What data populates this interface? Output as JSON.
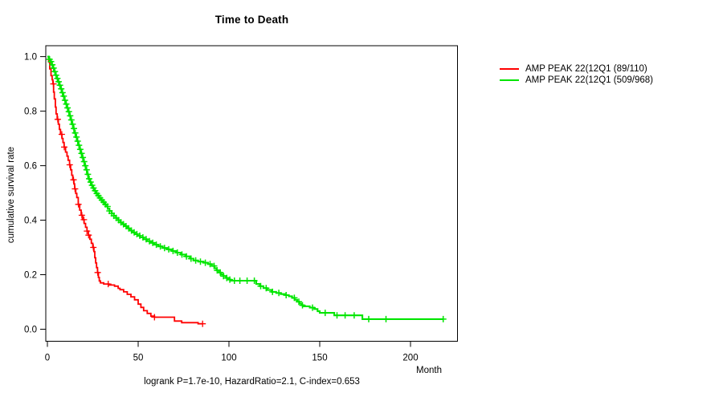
{
  "title": "Time to Death",
  "footnote": "logrank P=1.7e-10, HazardRatio=2.1, C-index=0.653",
  "axes": {
    "xlabel": "Month",
    "ylabel": "cumulative survival rate",
    "x_tick_labels": [
      "0",
      "50",
      "100",
      "150",
      "200"
    ],
    "y_tick_labels": [
      "0.0",
      "0.2",
      "0.4",
      "0.6",
      "0.8",
      "1.0"
    ]
  },
  "legend": [
    {
      "label": "AMP PEAK 22(12Q1 (89/110)",
      "color": "#ff0000"
    },
    {
      "label": "AMP PEAK 22(12Q1 (509/968)",
      "color": "#00e500"
    }
  ],
  "colors": {
    "group1": "#ff0000",
    "group2": "#00e500",
    "axis": "#000000",
    "background": "#ffffff"
  },
  "chart_data": {
    "type": "line",
    "subtype": "kaplan-meier-survival-step",
    "title": "Time to Death",
    "xlabel": "Month",
    "ylabel": "cumulative survival rate",
    "xlim": [
      0,
      225
    ],
    "ylim": [
      0,
      1.0
    ],
    "x_ticks": [
      0,
      50,
      100,
      150,
      200
    ],
    "y_ticks": [
      0,
      0.2,
      0.4,
      0.6,
      0.8,
      1
    ],
    "grid": false,
    "legend_position": "right-outside",
    "annotation": "logrank P=1.7e-10, HazardRatio=2.1, C-index=0.653",
    "series": [
      {
        "name": "AMP PEAK 22(12Q1 (89/110)",
        "events_over_total": "89/110",
        "color": "#ff0000",
        "end_month": 85.5,
        "points": [
          [
            0,
            1.0
          ],
          [
            0.7,
            0.98
          ],
          [
            1.3,
            0.955
          ],
          [
            2,
            0.93
          ],
          [
            2.6,
            0.915
          ],
          [
            3,
            0.9
          ],
          [
            3.4,
            0.87
          ],
          [
            3.8,
            0.845
          ],
          [
            4.4,
            0.815
          ],
          [
            4.8,
            0.79
          ],
          [
            5.4,
            0.77
          ],
          [
            6,
            0.752
          ],
          [
            6.6,
            0.733
          ],
          [
            7.2,
            0.715
          ],
          [
            8,
            0.7
          ],
          [
            8.6,
            0.685
          ],
          [
            9.2,
            0.668
          ],
          [
            10,
            0.65
          ],
          [
            10.8,
            0.635
          ],
          [
            11.4,
            0.62
          ],
          [
            12.2,
            0.603
          ],
          [
            12.8,
            0.585
          ],
          [
            13.4,
            0.565
          ],
          [
            14,
            0.548
          ],
          [
            14.6,
            0.533
          ],
          [
            15,
            0.515
          ],
          [
            15.6,
            0.498
          ],
          [
            16.2,
            0.483
          ],
          [
            17,
            0.458
          ],
          [
            17.8,
            0.437
          ],
          [
            18.6,
            0.418
          ],
          [
            19.4,
            0.402
          ],
          [
            20.2,
            0.388
          ],
          [
            21,
            0.374
          ],
          [
            21.8,
            0.36
          ],
          [
            22.6,
            0.345
          ],
          [
            23.4,
            0.33
          ],
          [
            24.2,
            0.315
          ],
          [
            25,
            0.3
          ],
          [
            25.6,
            0.285
          ],
          [
            26.1,
            0.262
          ],
          [
            26.6,
            0.243
          ],
          [
            27.1,
            0.226
          ],
          [
            27.6,
            0.208
          ],
          [
            28.1,
            0.19
          ],
          [
            28.6,
            0.177
          ],
          [
            29.2,
            0.17
          ],
          [
            31,
            0.166
          ],
          [
            34,
            0.162
          ],
          [
            37,
            0.158
          ],
          [
            39,
            0.15
          ],
          [
            40,
            0.145
          ],
          [
            42,
            0.137
          ],
          [
            44,
            0.128
          ],
          [
            46,
            0.119
          ],
          [
            48,
            0.108
          ],
          [
            50,
            0.092
          ],
          [
            51.5,
            0.08
          ],
          [
            53,
            0.068
          ],
          [
            55,
            0.058
          ],
          [
            57,
            0.048
          ],
          [
            59,
            0.044
          ],
          [
            70,
            0.03
          ],
          [
            74,
            0.024
          ],
          [
            83,
            0.02
          ]
        ],
        "censor_months": [
          3.3,
          5.7,
          7.9,
          9.3,
          12.3,
          14.4,
          15.2,
          17.1,
          19,
          20.1,
          21.8,
          22.7,
          25.3,
          27.7,
          33.5,
          59,
          85.5
        ]
      },
      {
        "name": "AMP PEAK 22(12Q1 (509/968)",
        "events_over_total": "509/968",
        "color": "#00e500",
        "end_month": 218,
        "points": [
          [
            0,
            1.0
          ],
          [
            0.8,
            0.99
          ],
          [
            1.5,
            0.982
          ],
          [
            2.2,
            0.97
          ],
          [
            2.9,
            0.958
          ],
          [
            3.6,
            0.945
          ],
          [
            4.3,
            0.932
          ],
          [
            5,
            0.92
          ],
          [
            5.7,
            0.908
          ],
          [
            6.4,
            0.895
          ],
          [
            7.1,
            0.882
          ],
          [
            7.8,
            0.868
          ],
          [
            8.5,
            0.855
          ],
          [
            9.2,
            0.84
          ],
          [
            9.9,
            0.826
          ],
          [
            10.6,
            0.812
          ],
          [
            11.3,
            0.798
          ],
          [
            12,
            0.783
          ],
          [
            12.7,
            0.768
          ],
          [
            13.4,
            0.752
          ],
          [
            14.1,
            0.736
          ],
          [
            14.8,
            0.72
          ],
          [
            15.5,
            0.705
          ],
          [
            16.2,
            0.69
          ],
          [
            16.9,
            0.675
          ],
          [
            17.6,
            0.66
          ],
          [
            18.3,
            0.645
          ],
          [
            19,
            0.63
          ],
          [
            19.7,
            0.615
          ],
          [
            20.4,
            0.6
          ],
          [
            21.1,
            0.585
          ],
          [
            21.8,
            0.568
          ],
          [
            22.5,
            0.552
          ],
          [
            23.2,
            0.54
          ],
          [
            24,
            0.528
          ],
          [
            24.8,
            0.518
          ],
          [
            25.6,
            0.508
          ],
          [
            26.5,
            0.498
          ],
          [
            27.4,
            0.49
          ],
          [
            28.3,
            0.482
          ],
          [
            29.2,
            0.474
          ],
          [
            30.2,
            0.466
          ],
          [
            31.2,
            0.458
          ],
          [
            32.2,
            0.45
          ],
          [
            33.2,
            0.442
          ],
          [
            34.2,
            0.434
          ],
          [
            35.4,
            0.425
          ],
          [
            36.6,
            0.416
          ],
          [
            37.8,
            0.408
          ],
          [
            39,
            0.4
          ],
          [
            40.2,
            0.392
          ],
          [
            41.4,
            0.385
          ],
          [
            42.6,
            0.378
          ],
          [
            44,
            0.37
          ],
          [
            45.4,
            0.362
          ],
          [
            46.8,
            0.355
          ],
          [
            48.2,
            0.349
          ],
          [
            49.6,
            0.343
          ],
          [
            51,
            0.337
          ],
          [
            53,
            0.33
          ],
          [
            55,
            0.323
          ],
          [
            57,
            0.317
          ],
          [
            59,
            0.31
          ],
          [
            61,
            0.304
          ],
          [
            63.5,
            0.298
          ],
          [
            66,
            0.293
          ],
          [
            68.5,
            0.287
          ],
          [
            71,
            0.281
          ],
          [
            73.5,
            0.274
          ],
          [
            76,
            0.267
          ],
          [
            78.5,
            0.259
          ],
          [
            80.5,
            0.252
          ],
          [
            83,
            0.248
          ],
          [
            86,
            0.244
          ],
          [
            88.5,
            0.239
          ],
          [
            90.5,
            0.232
          ],
          [
            92,
            0.224
          ],
          [
            93.2,
            0.216
          ],
          [
            94.4,
            0.208
          ],
          [
            95.6,
            0.201
          ],
          [
            97,
            0.195
          ],
          [
            98.4,
            0.188
          ],
          [
            99.7,
            0.182
          ],
          [
            101,
            0.178
          ],
          [
            115,
            0.166
          ],
          [
            117,
            0.158
          ],
          [
            119,
            0.151
          ],
          [
            121,
            0.144
          ],
          [
            123.5,
            0.137
          ],
          [
            126,
            0.133
          ],
          [
            128.5,
            0.129
          ],
          [
            131,
            0.125
          ],
          [
            133,
            0.121
          ],
          [
            134.8,
            0.115
          ],
          [
            136.2,
            0.108
          ],
          [
            137.6,
            0.101
          ],
          [
            138.8,
            0.094
          ],
          [
            140,
            0.088
          ],
          [
            141.2,
            0.084
          ],
          [
            144.5,
            0.079
          ],
          [
            147,
            0.074
          ],
          [
            148.8,
            0.066
          ],
          [
            150,
            0.06
          ],
          [
            158,
            0.051
          ],
          [
            173.5,
            0.037
          ]
        ],
        "censor_months": [
          1.2,
          2,
          2.7,
          3.4,
          4.1,
          4.8,
          5.5,
          6.2,
          6.9,
          7.6,
          8.3,
          9,
          9.7,
          10.4,
          11.1,
          11.8,
          12.5,
          13.2,
          13.9,
          14.6,
          15.3,
          16,
          16.7,
          17.4,
          18.1,
          18.8,
          19.5,
          20.2,
          20.9,
          21.6,
          22.3,
          23,
          23.8,
          24.6,
          25.4,
          26.3,
          27.2,
          28.1,
          29,
          30,
          31,
          32,
          33.1,
          34.2,
          35.4,
          36.6,
          37.9,
          39.2,
          40.5,
          41.9,
          43.3,
          44.8,
          46.3,
          47.8,
          49.3,
          50.9,
          52.6,
          54.4,
          56.2,
          58,
          60,
          62.2,
          64.5,
          66.8,
          69.2,
          71.6,
          74.1,
          76.6,
          79.1,
          81.7,
          84.3,
          87,
          89.6,
          91.8,
          93.5,
          95.2,
          97,
          98.8,
          100.5,
          103,
          106,
          110,
          114,
          117.5,
          120.5,
          124,
          127.5,
          131.5,
          136,
          138.5,
          140.5,
          146,
          153,
          159.5,
          164,
          169,
          177,
          186.5,
          218
        ]
      }
    ]
  }
}
